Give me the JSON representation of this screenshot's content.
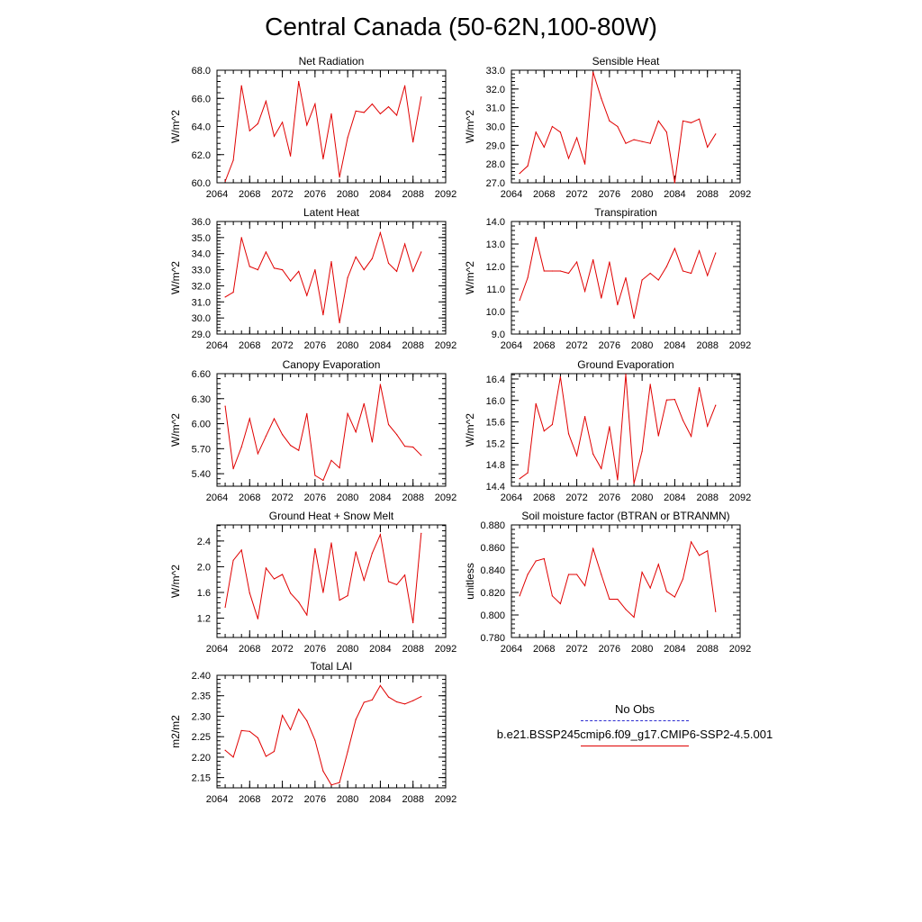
{
  "page_title": "Central Canada (50-62N,100-80W)",
  "line_color": "#e00000",
  "legend": {
    "obs_label": "No Obs",
    "obs_color": "#2b2bd0",
    "model_label": "b.e21.BSSP245cmip6.f09_g17.CMIP6-SSP2-4.5.001",
    "model_color": "#e00000"
  },
  "chart_data": [
    {
      "type": "line",
      "title": "Net Radiation",
      "ylabel": "W/m^2",
      "xlim": [
        2064,
        2092
      ],
      "ylim": [
        60.0,
        68.0
      ],
      "x_ticks": [
        2064,
        2068,
        2072,
        2076,
        2080,
        2084,
        2088,
        2092
      ],
      "y_ticks": [
        "60.0",
        "62.0",
        "64.0",
        "66.0",
        "68.0"
      ],
      "x": [
        2065,
        2066,
        2067,
        2068,
        2069,
        2070,
        2071,
        2072,
        2073,
        2074,
        2075,
        2076,
        2077,
        2078,
        2079,
        2080,
        2081,
        2082,
        2083,
        2084,
        2085,
        2086,
        2087,
        2088,
        2089
      ],
      "series": [
        {
          "values": [
            60.1,
            61.6,
            66.9,
            63.7,
            64.2,
            65.8,
            63.3,
            64.3,
            61.9,
            67.2,
            64.1,
            65.6,
            61.7,
            64.9,
            60.4,
            63.2,
            65.1,
            65.0,
            65.6,
            64.9,
            65.4,
            64.8,
            66.9,
            62.9,
            66.1
          ]
        }
      ]
    },
    {
      "type": "line",
      "title": "Sensible Heat",
      "ylabel": "W/m^2",
      "xlim": [
        2064,
        2092
      ],
      "ylim": [
        27.0,
        33.0
      ],
      "x_ticks": [
        2064,
        2068,
        2072,
        2076,
        2080,
        2084,
        2088,
        2092
      ],
      "y_ticks": [
        "27.0",
        "28.0",
        "29.0",
        "30.0",
        "31.0",
        "32.0",
        "33.0"
      ],
      "x": [
        2065,
        2066,
        2067,
        2068,
        2069,
        2070,
        2071,
        2072,
        2073,
        2074,
        2075,
        2076,
        2077,
        2078,
        2079,
        2080,
        2081,
        2082,
        2083,
        2084,
        2085,
        2086,
        2087,
        2088,
        2089
      ],
      "series": [
        {
          "values": [
            27.5,
            27.9,
            29.7,
            28.9,
            30.0,
            29.7,
            28.3,
            29.4,
            28.0,
            32.9,
            31.5,
            30.3,
            30.0,
            29.1,
            29.3,
            29.2,
            29.1,
            30.3,
            29.7,
            27.0,
            30.3,
            30.2,
            30.4,
            28.9,
            29.6
          ]
        }
      ]
    },
    {
      "type": "line",
      "title": "Latent Heat",
      "ylabel": "W/m^2",
      "xlim": [
        2064,
        2092
      ],
      "ylim": [
        29.0,
        36.0
      ],
      "x_ticks": [
        2064,
        2068,
        2072,
        2076,
        2080,
        2084,
        2088,
        2092
      ],
      "y_ticks": [
        "29.0",
        "30.0",
        "31.0",
        "32.0",
        "33.0",
        "34.0",
        "35.0",
        "36.0"
      ],
      "x": [
        2065,
        2066,
        2067,
        2068,
        2069,
        2070,
        2071,
        2072,
        2073,
        2074,
        2075,
        2076,
        2077,
        2078,
        2079,
        2080,
        2081,
        2082,
        2083,
        2084,
        2085,
        2086,
        2087,
        2088,
        2089
      ],
      "series": [
        {
          "values": [
            31.3,
            31.6,
            35.0,
            33.2,
            33.0,
            34.1,
            33.1,
            33.0,
            32.3,
            32.9,
            31.4,
            33.0,
            30.2,
            33.5,
            29.7,
            32.5,
            33.8,
            33.0,
            33.7,
            35.3,
            33.4,
            32.9,
            34.6,
            32.9,
            34.1
          ]
        }
      ]
    },
    {
      "type": "line",
      "title": "Transpiration",
      "ylabel": "W/m^2",
      "xlim": [
        2064,
        2092
      ],
      "ylim": [
        9.0,
        14.0
      ],
      "x_ticks": [
        2064,
        2068,
        2072,
        2076,
        2080,
        2084,
        2088,
        2092
      ],
      "y_ticks": [
        "9.0",
        "10.0",
        "11.0",
        "12.0",
        "13.0",
        "14.0"
      ],
      "x": [
        2065,
        2066,
        2067,
        2068,
        2069,
        2070,
        2071,
        2072,
        2073,
        2074,
        2075,
        2076,
        2077,
        2078,
        2079,
        2080,
        2081,
        2082,
        2083,
        2084,
        2085,
        2086,
        2087,
        2088,
        2089
      ],
      "series": [
        {
          "values": [
            10.5,
            11.5,
            13.3,
            11.8,
            11.8,
            11.8,
            11.7,
            12.2,
            10.9,
            12.3,
            10.6,
            12.2,
            10.3,
            11.5,
            9.7,
            11.4,
            11.7,
            11.4,
            12.0,
            12.8,
            11.8,
            11.7,
            12.7,
            11.6,
            12.6
          ]
        }
      ]
    },
    {
      "type": "line",
      "title": "Canopy Evaporation",
      "ylabel": "W/m^2",
      "xlim": [
        2064,
        2092
      ],
      "ylim": [
        5.25,
        6.6
      ],
      "x_ticks": [
        2064,
        2068,
        2072,
        2076,
        2080,
        2084,
        2088,
        2092
      ],
      "y_ticks": [
        "5.40",
        "5.70",
        "6.00",
        "6.30",
        "6.60"
      ],
      "x": [
        2065,
        2066,
        2067,
        2068,
        2069,
        2070,
        2071,
        2072,
        2073,
        2074,
        2075,
        2076,
        2077,
        2078,
        2079,
        2080,
        2081,
        2082,
        2083,
        2084,
        2085,
        2086,
        2087,
        2088,
        2089
      ],
      "series": [
        {
          "values": [
            6.21,
            5.46,
            5.72,
            6.06,
            5.64,
            5.85,
            6.06,
            5.87,
            5.74,
            5.68,
            6.12,
            5.38,
            5.32,
            5.56,
            5.47,
            6.12,
            5.9,
            6.24,
            5.78,
            6.47,
            5.99,
            5.87,
            5.73,
            5.72,
            5.62
          ]
        }
      ]
    },
    {
      "type": "line",
      "title": "Ground Evaporation",
      "ylabel": "W/m^2",
      "xlim": [
        2064,
        2092
      ],
      "ylim": [
        14.4,
        16.5
      ],
      "x_ticks": [
        2064,
        2068,
        2072,
        2076,
        2080,
        2084,
        2088,
        2092
      ],
      "y_ticks": [
        "14.4",
        "14.8",
        "15.2",
        "15.6",
        "16.0",
        "16.4"
      ],
      "x": [
        2065,
        2066,
        2067,
        2068,
        2069,
        2070,
        2071,
        2072,
        2073,
        2074,
        2075,
        2076,
        2077,
        2078,
        2079,
        2080,
        2081,
        2082,
        2083,
        2084,
        2085,
        2086,
        2087,
        2088,
        2089
      ],
      "series": [
        {
          "values": [
            14.54,
            14.65,
            15.94,
            15.43,
            15.55,
            16.44,
            15.38,
            14.97,
            15.7,
            15.0,
            14.73,
            15.51,
            14.52,
            16.49,
            14.45,
            15.05,
            16.3,
            15.34,
            16.01,
            16.02,
            15.63,
            15.33,
            16.24,
            15.52,
            15.91
          ]
        }
      ]
    },
    {
      "type": "line",
      "title": "Ground Heat + Snow Melt",
      "ylabel": "W/m^2",
      "xlim": [
        2064,
        2092
      ],
      "ylim": [
        0.9,
        2.65
      ],
      "x_ticks": [
        2064,
        2068,
        2072,
        2076,
        2080,
        2084,
        2088,
        2092
      ],
      "y_ticks": [
        "1.2",
        "1.6",
        "2.0",
        "2.4"
      ],
      "x": [
        2065,
        2066,
        2067,
        2068,
        2069,
        2070,
        2071,
        2072,
        2073,
        2074,
        2075,
        2076,
        2077,
        2078,
        2079,
        2080,
        2081,
        2082,
        2083,
        2084,
        2085,
        2086,
        2087,
        2088,
        2089
      ],
      "series": [
        {
          "values": [
            1.37,
            2.1,
            2.26,
            1.59,
            1.19,
            1.98,
            1.81,
            1.88,
            1.59,
            1.45,
            1.25,
            2.28,
            1.6,
            2.37,
            1.48,
            1.55,
            2.23,
            1.79,
            2.21,
            2.5,
            1.77,
            1.72,
            1.87,
            1.13,
            2.52
          ]
        }
      ]
    },
    {
      "type": "line",
      "title": "Soil moisture factor (BTRAN or BTRANMN)",
      "ylabel": "unitless",
      "xlim": [
        2064,
        2092
      ],
      "ylim": [
        0.78,
        0.88
      ],
      "x_ticks": [
        2064,
        2068,
        2072,
        2076,
        2080,
        2084,
        2088,
        2092
      ],
      "y_ticks": [
        "0.780",
        "0.800",
        "0.820",
        "0.840",
        "0.860",
        "0.880"
      ],
      "x": [
        2065,
        2066,
        2067,
        2068,
        2069,
        2070,
        2071,
        2072,
        2073,
        2074,
        2075,
        2076,
        2077,
        2078,
        2079,
        2080,
        2081,
        2082,
        2083,
        2084,
        2085,
        2086,
        2087,
        2088,
        2089
      ],
      "series": [
        {
          "values": [
            0.817,
            0.836,
            0.848,
            0.85,
            0.817,
            0.81,
            0.836,
            0.836,
            0.826,
            0.859,
            0.836,
            0.814,
            0.814,
            0.805,
            0.798,
            0.838,
            0.824,
            0.845,
            0.821,
            0.816,
            0.832,
            0.865,
            0.853,
            0.857,
            0.803
          ]
        }
      ]
    },
    {
      "type": "line",
      "title": "Total LAI",
      "ylabel": "m2/m2",
      "xlim": [
        2064,
        2092
      ],
      "ylim": [
        2.125,
        2.4
      ],
      "x_ticks": [
        2064,
        2068,
        2072,
        2076,
        2080,
        2084,
        2088,
        2092
      ],
      "y_ticks": [
        "2.15",
        "2.20",
        "2.25",
        "2.30",
        "2.35",
        "2.40"
      ],
      "x": [
        2065,
        2066,
        2067,
        2068,
        2069,
        2070,
        2071,
        2072,
        2073,
        2074,
        2075,
        2076,
        2077,
        2078,
        2079,
        2080,
        2081,
        2082,
        2083,
        2084,
        2085,
        2086,
        2087,
        2088,
        2089
      ],
      "series": [
        {
          "values": [
            2.217,
            2.2,
            2.265,
            2.263,
            2.247,
            2.202,
            2.214,
            2.302,
            2.267,
            2.317,
            2.289,
            2.241,
            2.166,
            2.132,
            2.138,
            2.213,
            2.292,
            2.334,
            2.34,
            2.375,
            2.347,
            2.335,
            2.33,
            2.338,
            2.348
          ]
        }
      ]
    }
  ]
}
